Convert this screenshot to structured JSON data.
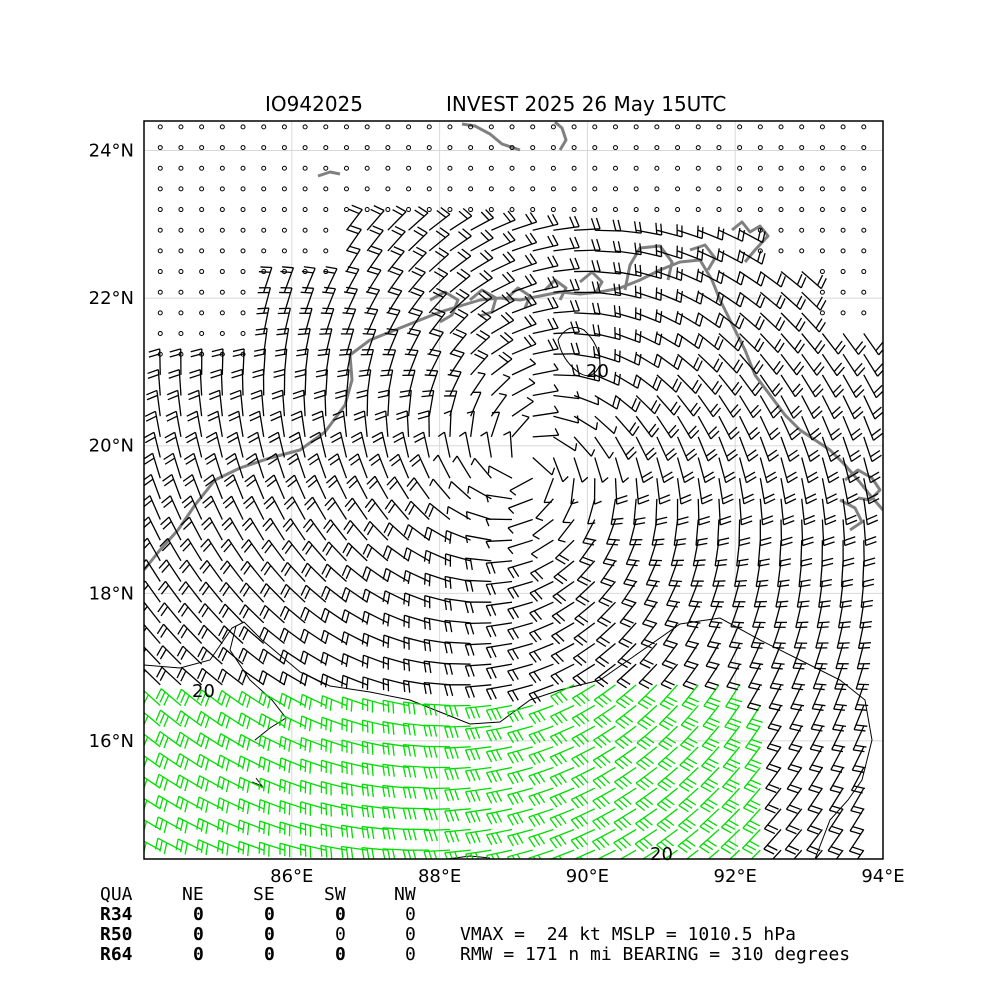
{
  "header": {
    "storm_id": "IO942025",
    "title": "INVEST 2025 26 May 15UTC"
  },
  "map": {
    "lon_range": [
      84.0,
      94.0
    ],
    "lat_range": [
      14.4,
      24.4
    ],
    "lon_ticks": [
      "86°E",
      "88°E",
      "90°E",
      "92°E",
      "94°E"
    ],
    "lon_tick_values": [
      86,
      88,
      90,
      92,
      94
    ],
    "lat_ticks": [
      "16°N",
      "18°N",
      "20°N",
      "22°N",
      "24°N"
    ],
    "lat_tick_values": [
      16,
      18,
      20,
      22,
      24
    ],
    "gridlines": true,
    "coast_color": "#808080",
    "barb_color": "#000000",
    "strong_barb_color": "#00dd00",
    "contour_color": "#000000",
    "contour_label": "20",
    "center_lon": 89.2,
    "center_lat": 19.8
  },
  "wind_radii": {
    "columns": [
      "QUA",
      "NE",
      "SE",
      "SW",
      "NW"
    ],
    "rows": [
      {
        "label": "R34",
        "values": [
          "0",
          "0",
          "0",
          "0"
        ]
      },
      {
        "label": "R50",
        "values": [
          "0",
          "0",
          "0",
          "0"
        ]
      },
      {
        "label": "R64",
        "values": [
          "0",
          "0",
          "0",
          "0"
        ]
      }
    ]
  },
  "stats": {
    "line1": "VMAX =  24 kt MSLP = 1010.5 hPa",
    "line2": "RMW = 171 n mi BEARING = 310 degrees"
  }
}
